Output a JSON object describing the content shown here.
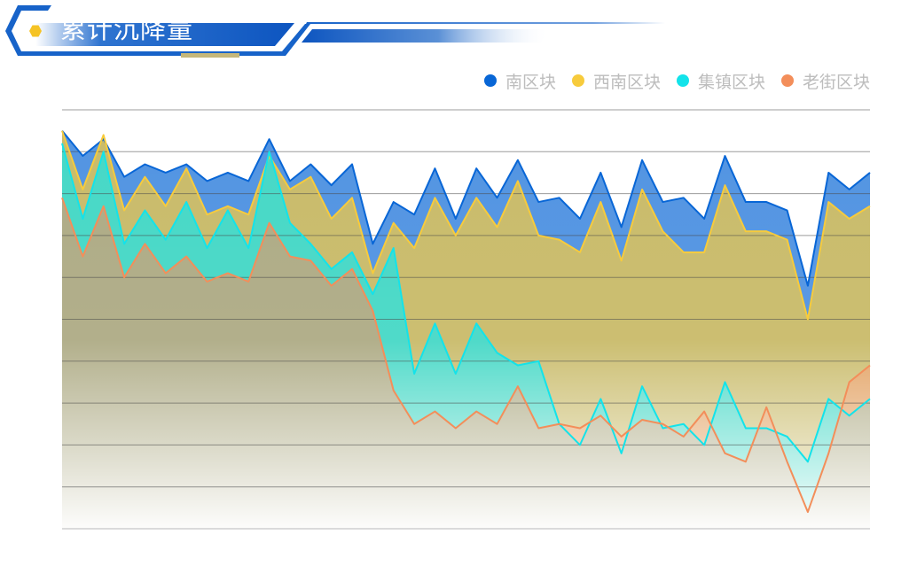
{
  "header": {
    "title": "累计沉降量"
  },
  "colors": {
    "accent_blue": "#1763c9",
    "badge_yellow": "#f5c325"
  },
  "chart_data": {
    "type": "area",
    "title": "累计沉降量",
    "legend_position": "top-right",
    "grid": true,
    "ylim": [
      0,
      100
    ],
    "series": [
      {
        "name": "南区块",
        "color": "#0866d6",
        "values": [
          95,
          89,
          93,
          84,
          87,
          85,
          87,
          83,
          85,
          83,
          93,
          83,
          87,
          82,
          87,
          68,
          78,
          75,
          86,
          74,
          86,
          79,
          88,
          78,
          79,
          74,
          85,
          72,
          88,
          78,
          79,
          74,
          89,
          78,
          78,
          76,
          58,
          85,
          81,
          85
        ]
      },
      {
        "name": "西南区块",
        "color": "#f7cb3c",
        "values": [
          95,
          81,
          94,
          76,
          84,
          77,
          86,
          75,
          77,
          75,
          89,
          81,
          84,
          74,
          79,
          61,
          73,
          67,
          79,
          70,
          79,
          72,
          83,
          70,
          69,
          66,
          78,
          64,
          81,
          71,
          66,
          66,
          82,
          71,
          71,
          69,
          50,
          78,
          74,
          77
        ]
      },
      {
        "name": "集镇区块",
        "color": "#13e3ea",
        "values": [
          92,
          74,
          90,
          68,
          76,
          69,
          78,
          67,
          76,
          67,
          90,
          73,
          68,
          62,
          66,
          56,
          67,
          37,
          49,
          37,
          49,
          42,
          39,
          40,
          25,
          20,
          31,
          18,
          34,
          24,
          25,
          20,
          35,
          24,
          24,
          22,
          16,
          31,
          27,
          31
        ]
      },
      {
        "name": "老街区块",
        "color": "#f38e5a",
        "values": [
          79,
          65,
          77,
          60,
          68,
          61,
          65,
          59,
          61,
          59,
          73,
          65,
          64,
          58,
          62,
          52,
          33,
          25,
          28,
          24,
          28,
          25,
          34,
          24,
          25,
          24,
          27,
          22,
          26,
          25,
          22,
          28,
          18,
          16,
          29,
          16,
          4,
          18,
          35,
          39
        ]
      }
    ]
  }
}
